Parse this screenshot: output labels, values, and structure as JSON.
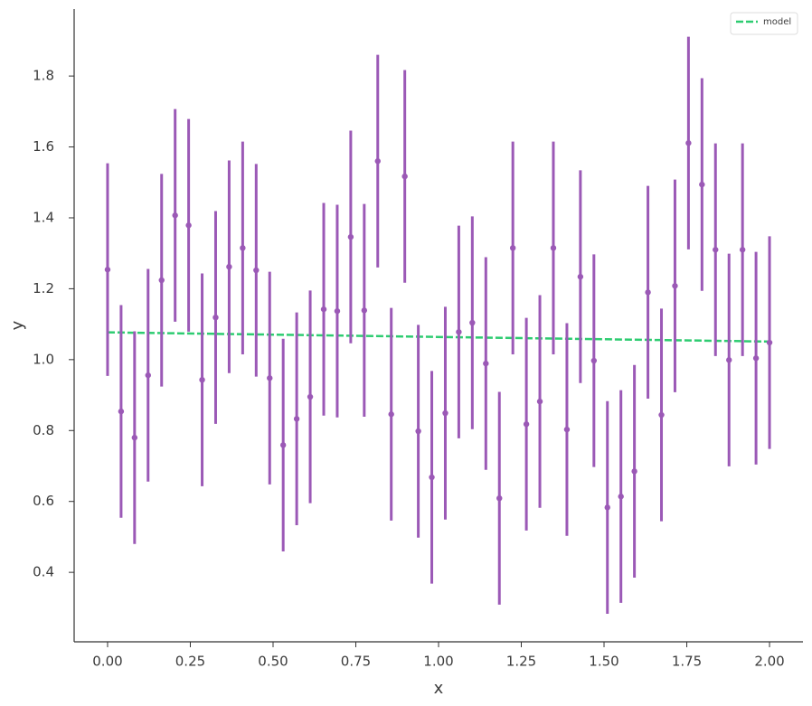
{
  "chart_data": {
    "type": "errorbar",
    "x_label": "x",
    "y_label": "y",
    "xlim": [
      -0.101,
      2.101
    ],
    "ylim": [
      0.204,
      1.989
    ],
    "xticks": [
      {
        "value": 0,
        "label": "0.00"
      },
      {
        "value": 0.25,
        "label": "0.25"
      },
      {
        "value": 0.5,
        "label": "0.50"
      },
      {
        "value": 0.75,
        "label": "0.75"
      },
      {
        "value": 1,
        "label": "1.00"
      },
      {
        "value": 1.25,
        "label": "1.25"
      },
      {
        "value": 1.5,
        "label": "1.50"
      },
      {
        "value": 1.75,
        "label": "1.75"
      },
      {
        "value": 2,
        "label": "2.00"
      }
    ],
    "yticks": [
      0.4,
      0.6,
      0.8,
      {
        "value": 1,
        "label": "1.0"
      },
      1.2,
      1.4,
      1.6,
      1.8
    ],
    "legend": "upper right",
    "series": [
      {
        "name": "model",
        "type": "line",
        "dashed": true,
        "color": "#2ecc71",
        "x": [
          0,
          2
        ],
        "values": [
          1.077,
          1.051
        ]
      },
      {
        "type": "errorbar",
        "color": "#9b59b6",
        "x": [
          0,
          0.0408,
          0.0816,
          0.1224,
          0.1633,
          0.2041,
          0.2449,
          0.2857,
          0.3265,
          0.3673,
          0.4082,
          0.449,
          0.4898,
          0.5306,
          0.5714,
          0.6122,
          0.6531,
          0.6939,
          0.7347,
          0.7755,
          0.8163,
          0.8571,
          0.898,
          0.9388,
          0.9796,
          1.0204,
          1.0612,
          1.102,
          1.1429,
          1.1837,
          1.2245,
          1.2653,
          1.3061,
          1.3469,
          1.3878,
          1.4286,
          1.4694,
          1.5102,
          1.551,
          1.5918,
          1.6327,
          1.6735,
          1.7143,
          1.7551,
          1.7959,
          1.8367,
          1.8776,
          1.9184,
          1.9592,
          2
        ],
        "values": [
          1.254,
          0.854,
          0.78,
          0.956,
          1.224,
          1.407,
          1.379,
          0.943,
          1.119,
          1.262,
          1.315,
          1.252,
          0.948,
          0.759,
          0.833,
          0.895,
          1.142,
          1.137,
          1.346,
          1.139,
          1.56,
          0.846,
          1.517,
          0.798,
          0.668,
          0.849,
          1.078,
          1.104,
          0.989,
          0.609,
          1.315,
          0.818,
          0.882,
          1.315,
          0.803,
          1.234,
          0.997,
          0.583,
          0.614,
          0.685,
          1.19,
          0.844,
          1.208,
          1.611,
          1.494,
          1.31,
          0.999,
          1.31,
          1.004,
          1.048
        ],
        "errors": [
          0.3,
          0.3,
          0.3,
          0.3,
          0.3,
          0.3,
          0.3,
          0.3,
          0.3,
          0.3,
          0.3,
          0.3,
          0.3,
          0.3,
          0.3,
          0.3,
          0.3,
          0.3,
          0.3,
          0.3,
          0.3,
          0.3,
          0.3,
          0.3,
          0.3,
          0.3,
          0.3,
          0.3,
          0.3,
          0.3,
          0.3,
          0.3,
          0.3,
          0.3,
          0.3,
          0.3,
          0.3,
          0.3,
          0.3,
          0.3,
          0.3,
          0.3,
          0.3,
          0.3,
          0.3,
          0.3,
          0.3,
          0.3,
          0.3,
          0.3
        ]
      }
    ]
  }
}
